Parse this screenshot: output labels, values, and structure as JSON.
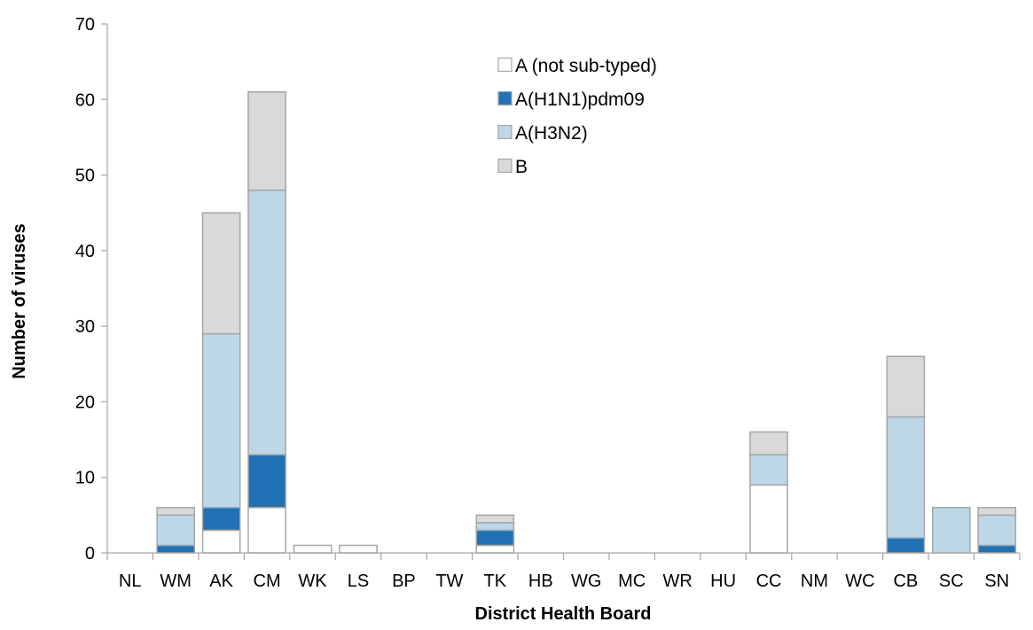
{
  "chart_data": {
    "type": "bar",
    "stacked": true,
    "xlabel": "District Health Board",
    "ylabel": "Number of viruses",
    "ylim": [
      0,
      70
    ],
    "yticks": [
      0,
      10,
      20,
      30,
      40,
      50,
      60,
      70
    ],
    "grid": false,
    "legend_position": "top-center",
    "categories": [
      "NL",
      "WM",
      "AK",
      "CM",
      "WK",
      "LS",
      "BP",
      "TW",
      "TK",
      "HB",
      "WG",
      "MC",
      "WR",
      "HU",
      "CC",
      "NM",
      "WC",
      "CB",
      "SC",
      "SN"
    ],
    "series": [
      {
        "name": "A (not sub-typed)",
        "color": "#ffffff",
        "values": [
          0,
          0,
          3,
          6,
          1,
          1,
          0,
          0,
          1,
          0,
          0,
          0,
          0,
          0,
          9,
          0,
          0,
          0,
          0,
          0
        ]
      },
      {
        "name": "A(H1N1)pdm09",
        "color": "#2171b5",
        "values": [
          0,
          1,
          3,
          7,
          0,
          0,
          0,
          0,
          2,
          0,
          0,
          0,
          0,
          0,
          0,
          0,
          0,
          2,
          0,
          1
        ]
      },
      {
        "name": "A(H3N2)",
        "color": "#bdd7e7",
        "values": [
          0,
          4,
          23,
          35,
          0,
          0,
          0,
          0,
          1,
          0,
          0,
          0,
          0,
          0,
          4,
          0,
          0,
          16,
          6,
          4
        ]
      },
      {
        "name": "B",
        "color": "#d9d9d9",
        "values": [
          0,
          1,
          16,
          13,
          0,
          0,
          0,
          0,
          1,
          0,
          0,
          0,
          0,
          0,
          3,
          0,
          0,
          8,
          0,
          1
        ]
      }
    ]
  }
}
